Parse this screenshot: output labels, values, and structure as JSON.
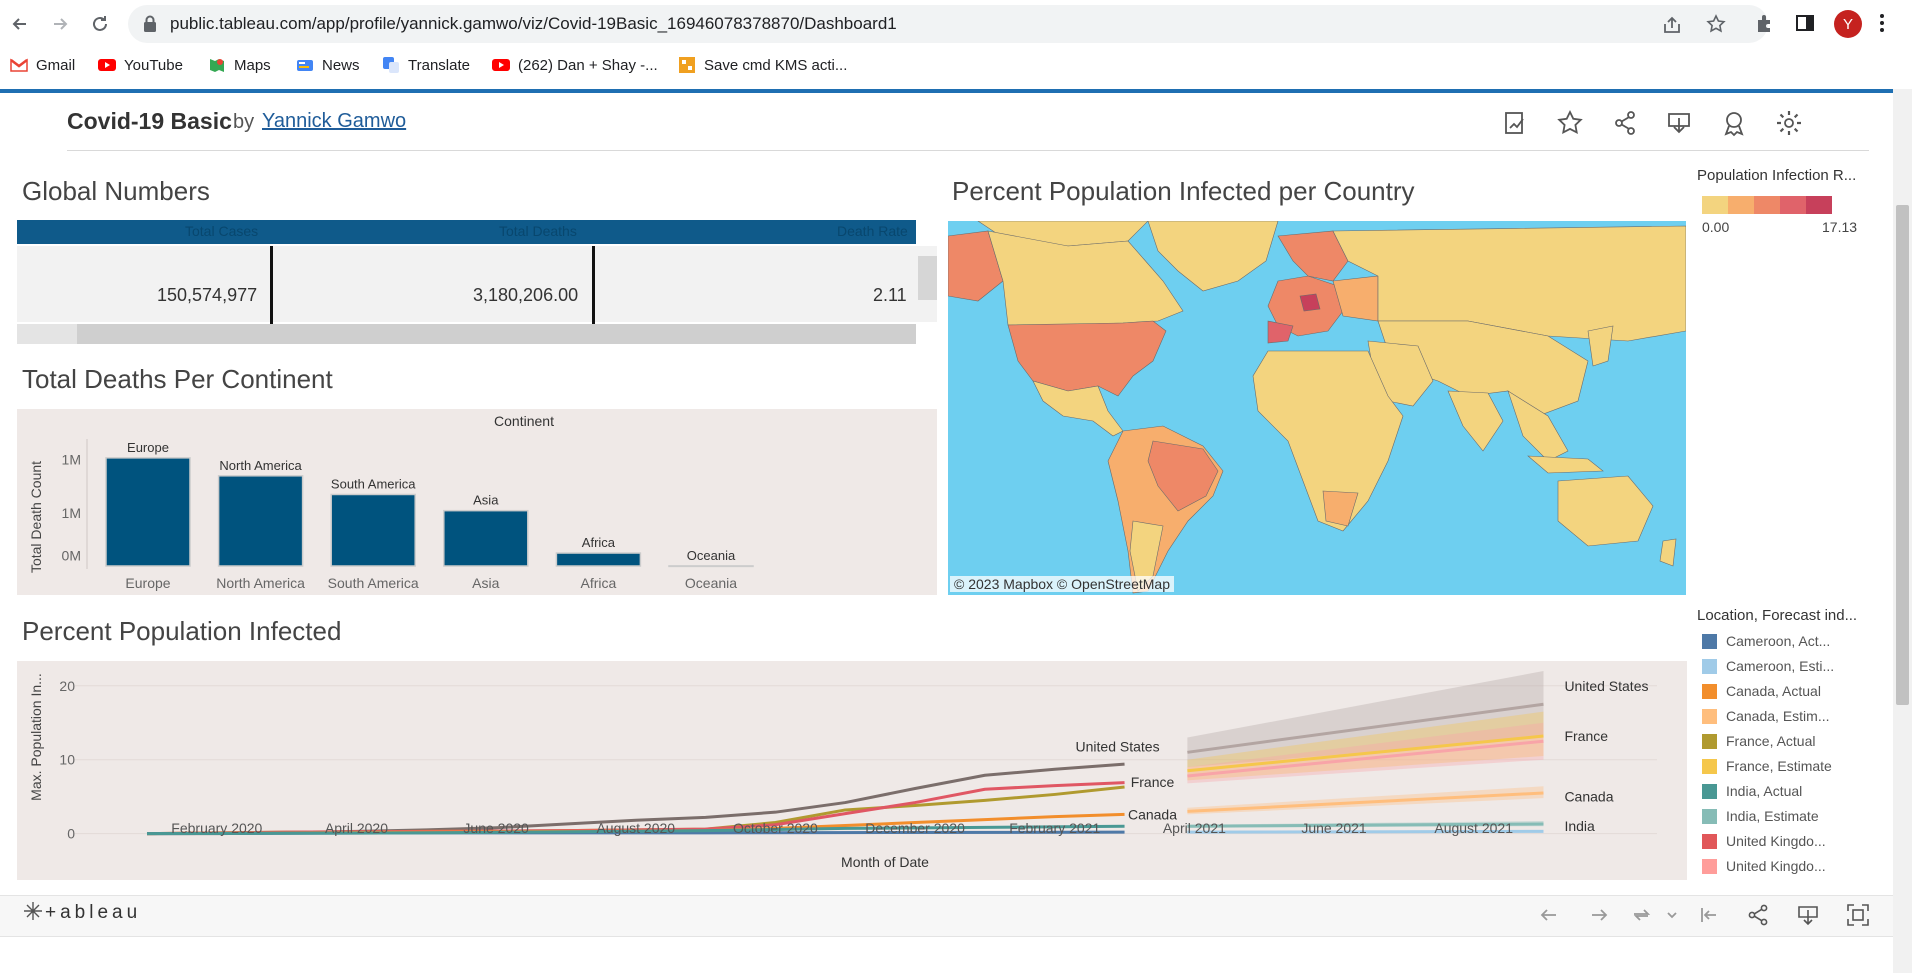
{
  "browser": {
    "url": "public.tableau.com/app/profile/yannick.gamwo/viz/Covid-19Basic_16946078378870/Dashboard1",
    "avatar_letter": "Y",
    "bookmarks": [
      {
        "label": "Gmail",
        "icon": "gmail-icon"
      },
      {
        "label": "YouTube",
        "icon": "youtube-icon"
      },
      {
        "label": "Maps",
        "icon": "maps-icon"
      },
      {
        "label": "News",
        "icon": "news-icon"
      },
      {
        "label": "Translate",
        "icon": "translate-icon"
      },
      {
        "label": "(262) Dan + Shay -...",
        "icon": "youtube-icon"
      },
      {
        "label": "Save cmd KMS acti...",
        "icon": "bookmark-site-icon"
      }
    ]
  },
  "viz": {
    "title": "Covid-19 Basic",
    "by": "by",
    "author": "Yannick Gamwo"
  },
  "global_numbers": {
    "title": "Global Numbers",
    "headers": [
      "Total Cases",
      "Total Deaths",
      "Death Rate"
    ],
    "values": [
      "150,574,977",
      "3,180,206.00",
      "2.11"
    ]
  },
  "deaths_chart": {
    "title": "Total Deaths Per Continent",
    "header": "Continent",
    "ylabel": "Total Death Count",
    "bar_color": "#00537e",
    "chart_data": {
      "type": "bar",
      "categories": [
        "Europe",
        "North America",
        "South America",
        "Asia",
        "Africa",
        "Oceania"
      ],
      "values": [
        1016750,
        847942,
        672415,
        520269,
        121784,
        1046
      ],
      "ylim": [
        0,
        1100000
      ],
      "ytick_labels": [
        "1M",
        "1M",
        "0M"
      ],
      "ytick_values": [
        1000000,
        500000,
        100000
      ],
      "xlabel": "",
      "legend": "none"
    }
  },
  "map": {
    "title": "Percent Population Infected per Country",
    "attribution": "© 2023 Mapbox  © OpenStreetMap",
    "legend_title": "Population Infection R...",
    "legend_min": "0.00",
    "legend_max": "17.13",
    "gradient_colors": [
      "#f3d47f",
      "#f7ae6d",
      "#ee8867",
      "#e0636a",
      "#c7405b"
    ],
    "water_color": "#6ecff0"
  },
  "infected_chart": {
    "title": "Percent Population Infected",
    "xlabel": "Month of Date",
    "ylabel": "Max. Population In...",
    "chart_data": {
      "type": "line",
      "xtick_labels": [
        "February 2020",
        "April 2020",
        "June 2020",
        "August 2020",
        "October 2020",
        "December 2020",
        "February 2021",
        "April 2021",
        "June 2021",
        "August 2021"
      ],
      "ytick_labels": [
        "20",
        "10",
        "0"
      ],
      "ytick_values": [
        20,
        10,
        0
      ],
      "ylim": [
        -1,
        22
      ],
      "xlim_months": [
        0,
        20
      ],
      "series": [
        {
          "name": "United States",
          "color": "#7b6e6b",
          "x": [
            0,
            1,
            2,
            3,
            4,
            5,
            6,
            7,
            8,
            9,
            10,
            11,
            12,
            13,
            14
          ],
          "y": [
            0.0,
            0.0,
            0.1,
            0.3,
            0.5,
            0.8,
            1.3,
            1.8,
            2.2,
            2.9,
            4.2,
            6.1,
            7.9,
            8.7,
            9.4
          ]
        },
        {
          "name": "France",
          "color": "#b09a2f",
          "x": [
            0,
            2,
            4,
            6,
            8,
            9,
            10,
            11,
            12,
            13,
            14
          ],
          "y": [
            0.0,
            0.2,
            0.3,
            0.4,
            0.6,
            1.5,
            3.2,
            3.8,
            4.5,
            5.3,
            6.3
          ]
        },
        {
          "name": "United Kingdom",
          "color": "#e05764",
          "x": [
            0,
            2,
            4,
            6,
            8,
            9,
            10,
            11,
            12,
            13,
            14
          ],
          "y": [
            0.0,
            0.2,
            0.3,
            0.4,
            0.6,
            1.2,
            2.7,
            4.2,
            6.0,
            6.5,
            6.9
          ]
        },
        {
          "name": "Canada",
          "color": "#f28e2c",
          "x": [
            0,
            2,
            4,
            6,
            8,
            9,
            10,
            11,
            12,
            13,
            14
          ],
          "y": [
            0.0,
            0.1,
            0.2,
            0.3,
            0.4,
            0.7,
            1.1,
            1.5,
            1.9,
            2.3,
            2.6
          ]
        },
        {
          "name": "Cameroon",
          "color": "#4e79a7",
          "x": [
            0,
            4,
            8,
            14
          ],
          "y": [
            0.0,
            0.1,
            0.1,
            0.2
          ]
        },
        {
          "name": "India",
          "color": "#499894",
          "x": [
            0,
            4,
            8,
            10,
            14
          ],
          "y": [
            0.0,
            0.1,
            0.4,
            0.7,
            1.0
          ]
        }
      ],
      "forecasts": [
        {
          "name": "United States",
          "color": "#b3a5a2",
          "x": [
            14.9,
            20
          ],
          "y": [
            11.0,
            17.5
          ],
          "band": [
            [
              9.0,
              13.0
            ],
            [
              13.0,
              22.0
            ]
          ]
        },
        {
          "name": "France",
          "color": "#f5c74b",
          "x": [
            14.9,
            20
          ],
          "y": [
            8.5,
            13.2
          ],
          "band": [
            [
              7.2,
              10.0
            ],
            [
              10.5,
              16.5
            ]
          ]
        },
        {
          "name": "United Kingdom",
          "color": "#f8a4a8",
          "x": [
            14.9,
            20
          ],
          "y": [
            7.8,
            12.5
          ],
          "band": [
            [
              6.8,
              9.0
            ],
            [
              10.0,
              15.0
            ]
          ]
        },
        {
          "name": "Canada",
          "color": "#ffbe7d",
          "x": [
            14.9,
            20
          ],
          "y": [
            3.0,
            5.5
          ],
          "band": [
            [
              2.6,
              3.5
            ],
            [
              4.8,
              6.4
            ]
          ]
        },
        {
          "name": "India",
          "color": "#86bcb6",
          "x": [
            14.9,
            20
          ],
          "y": [
            1.0,
            1.3
          ],
          "band": [
            [
              0.8,
              1.2
            ],
            [
              1.0,
              1.7
            ]
          ]
        },
        {
          "name": "Cameroon",
          "color": "#a0cbe8",
          "x": [
            14.9,
            20
          ],
          "y": [
            0.2,
            0.3
          ],
          "band": [
            [
              0.1,
              0.3
            ],
            [
              0.1,
              0.5
            ]
          ]
        }
      ],
      "line_labels": [
        {
          "text": "United States",
          "x": 13.9,
          "y": 11.8
        },
        {
          "text": "France",
          "x": 14.4,
          "y": 7.0
        },
        {
          "text": "Canada",
          "x": 14.4,
          "y": 2.6
        },
        {
          "text": "United States",
          "x": 20.3,
          "y": 20.0
        },
        {
          "text": "France",
          "x": 20.3,
          "y": 13.2
        },
        {
          "text": "Canada",
          "x": 20.3,
          "y": 5.0
        },
        {
          "text": "India",
          "x": 20.3,
          "y": 1.0
        }
      ]
    },
    "legend_title": "Location, Forecast ind...",
    "legend_items": [
      {
        "label": "Cameroon, Act...",
        "color": "#4e79a7"
      },
      {
        "label": "Cameroon, Esti...",
        "color": "#a0cbe8"
      },
      {
        "label": "Canada, Actual",
        "color": "#f28e2c"
      },
      {
        "label": "Canada, Estim...",
        "color": "#ffbe7d"
      },
      {
        "label": "France, Actual",
        "color": "#b09a2f"
      },
      {
        "label": "France, Estimate",
        "color": "#f5c74b"
      },
      {
        "label": "India, Actual",
        "color": "#499894"
      },
      {
        "label": "India, Estimate",
        "color": "#86bcb6"
      },
      {
        "label": "United Kingdo...",
        "color": "#e15759"
      },
      {
        "label": "United Kingdo...",
        "color": "#ff9d9a"
      }
    ]
  },
  "footer": {
    "logo": "+ableau"
  }
}
